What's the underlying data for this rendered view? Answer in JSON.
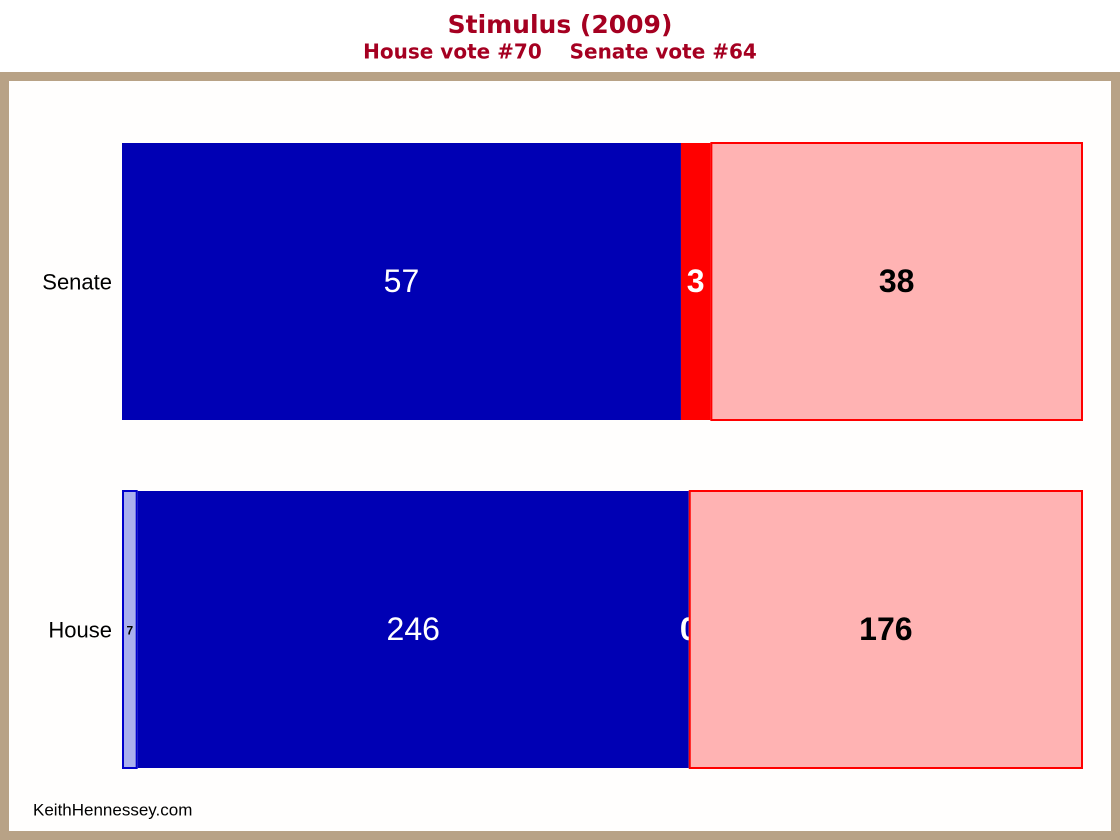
{
  "chart_data": {
    "type": "bar",
    "orientation": "horizontal",
    "stacking": "percent",
    "title": "Stimulus (2009)",
    "subtitle": "House vote #70    Senate vote #64",
    "source": "KeithHennessey.com",
    "categories": [
      "Senate",
      "House"
    ],
    "series": [
      {
        "color": "#aab0ee",
        "values": [
          null,
          7
        ]
      },
      {
        "color": "#0000b4",
        "values": [
          57,
          246
        ]
      },
      {
        "color": "#ff0000",
        "values": [
          3,
          0
        ]
      },
      {
        "color": "#ffb3b3",
        "values": [
          38,
          176
        ]
      }
    ]
  }
}
